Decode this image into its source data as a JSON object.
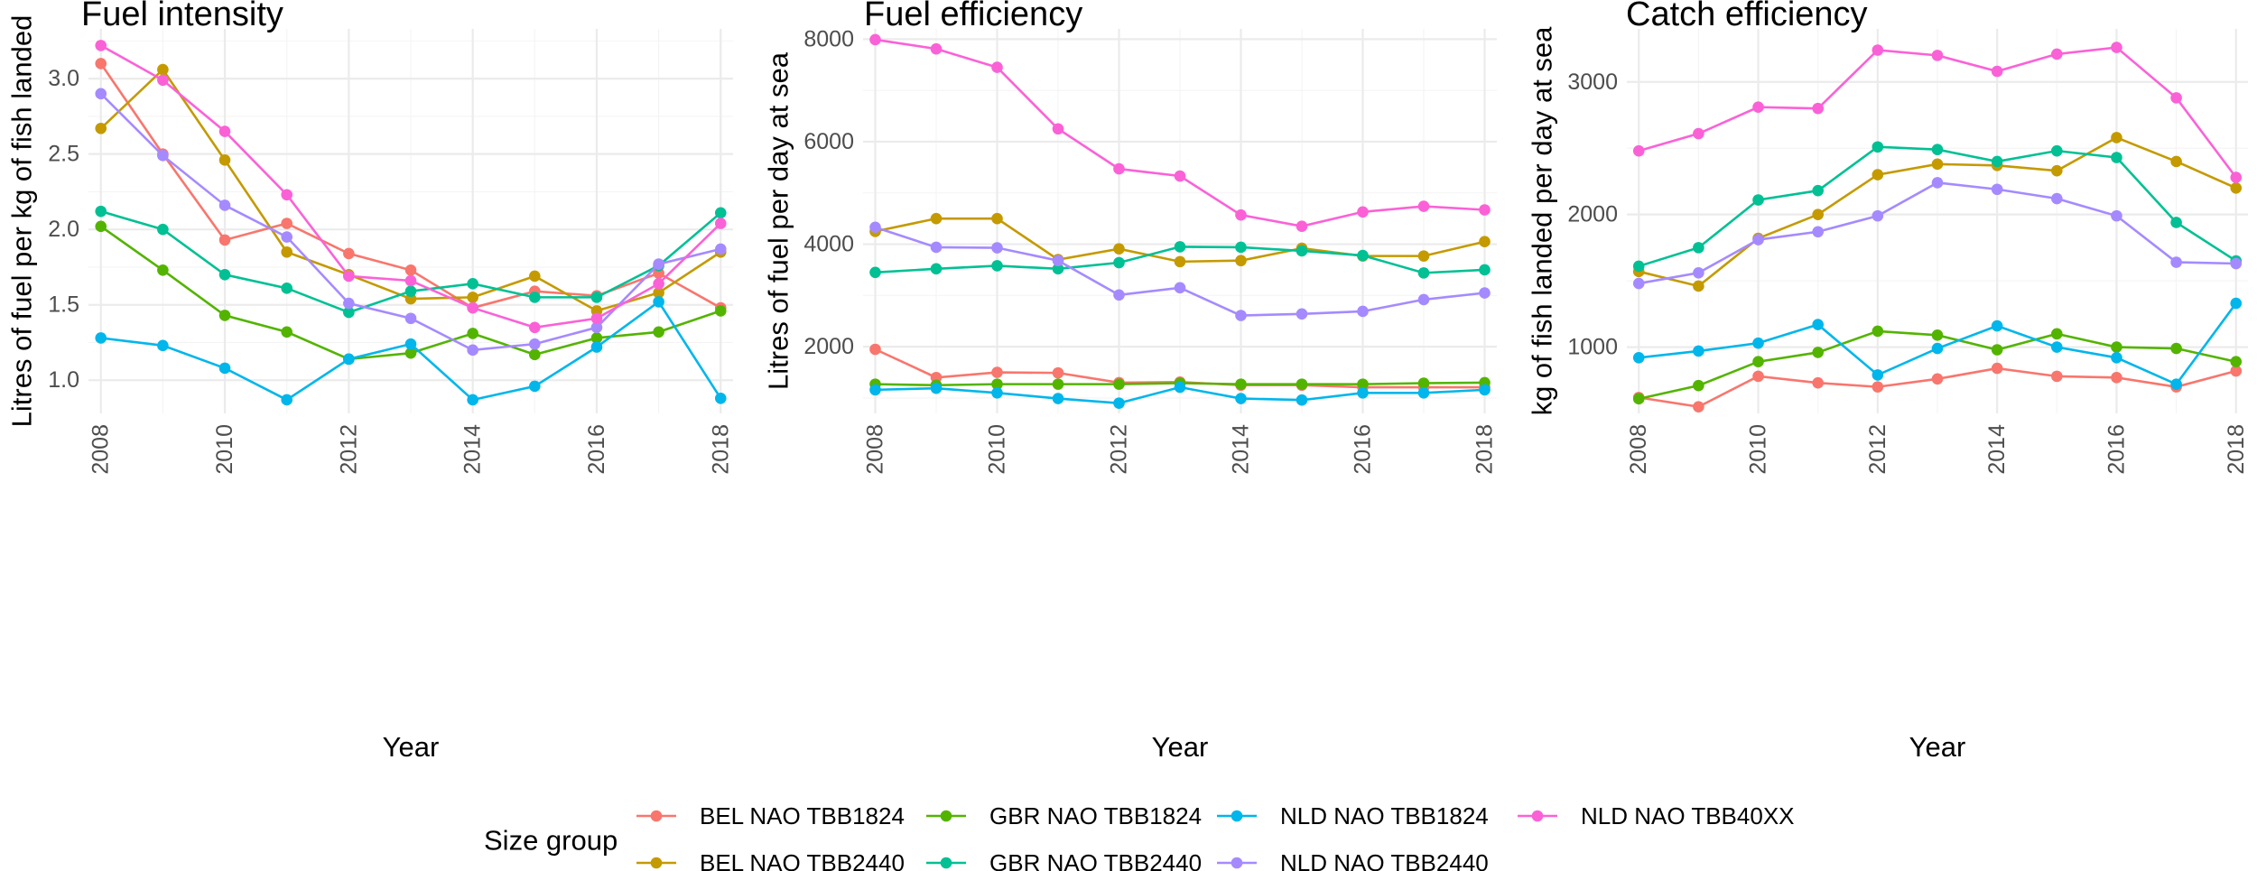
{
  "legend": {
    "title": "Size group",
    "order": [
      "BEL NAO TBB1824",
      "GBR NAO TBB1824",
      "NLD NAO TBB1824",
      "NLD NAO TBB40XX",
      "BEL NAO TBB2440",
      "GBR NAO TBB2440",
      "NLD NAO TBB2440"
    ]
  },
  "colors": {
    "BEL NAO TBB1824": "#F8766D",
    "BEL NAO TBB2440": "#C49A00",
    "GBR NAO TBB1824": "#53B400",
    "GBR NAO TBB2440": "#00C094",
    "NLD NAO TBB1824": "#00B6EB",
    "NLD NAO TBB2440": "#A58AFF",
    "NLD NAO TBB40XX": "#FB61D7"
  },
  "chart_data": [
    {
      "type": "line",
      "title": "Fuel intensity",
      "xlabel": "Year",
      "ylabel": "Litres of fuel per kg of fish landed",
      "xlim": [
        2007.8,
        2018.2
      ],
      "ylim": [
        0.78,
        3.33
      ],
      "xticks": [
        2008,
        2010,
        2012,
        2014,
        2016,
        2018
      ],
      "yticks": [
        1.0,
        1.5,
        2.0,
        2.5,
        3.0
      ],
      "ytick_labels": [
        "1.0",
        "1.5",
        "2.0",
        "2.5",
        "3.0"
      ],
      "x": [
        2008,
        2009,
        2010,
        2011,
        2012,
        2013,
        2014,
        2015,
        2016,
        2017,
        2018
      ],
      "series": [
        {
          "name": "BEL NAO TBB1824",
          "values": [
            3.1,
            2.5,
            1.93,
            2.04,
            1.84,
            1.73,
            1.48,
            1.59,
            1.56,
            1.71,
            1.48
          ]
        },
        {
          "name": "BEL NAO TBB2440",
          "values": [
            2.67,
            3.06,
            2.46,
            1.85,
            1.7,
            1.54,
            1.55,
            1.69,
            1.46,
            1.58,
            1.85
          ]
        },
        {
          "name": "GBR NAO TBB1824",
          "values": [
            2.02,
            1.73,
            1.43,
            1.32,
            1.14,
            1.18,
            1.31,
            1.17,
            1.28,
            1.32,
            1.46
          ]
        },
        {
          "name": "GBR NAO TBB2440",
          "values": [
            2.12,
            2.0,
            1.7,
            1.61,
            1.45,
            1.59,
            1.64,
            1.55,
            1.55,
            1.76,
            2.11
          ]
        },
        {
          "name": "NLD NAO TBB1824",
          "values": [
            1.28,
            1.23,
            1.08,
            0.87,
            1.14,
            1.24,
            0.87,
            0.96,
            1.22,
            1.52,
            0.88
          ]
        },
        {
          "name": "NLD NAO TBB2440",
          "values": [
            2.9,
            2.49,
            2.16,
            1.95,
            1.51,
            1.41,
            1.2,
            1.24,
            1.35,
            1.77,
            1.87
          ]
        },
        {
          "name": "NLD NAO TBB40XX",
          "values": [
            3.22,
            2.99,
            2.65,
            2.23,
            1.69,
            1.66,
            1.48,
            1.35,
            1.41,
            1.64,
            2.04
          ]
        }
      ]
    },
    {
      "type": "line",
      "title": "Fuel efficiency",
      "xlabel": "Year",
      "ylabel": "Litres of fuel per day at sea",
      "xlim": [
        2007.8,
        2018.2
      ],
      "ylim": [
        700,
        8200
      ],
      "xticks": [
        2008,
        2010,
        2012,
        2014,
        2016,
        2018
      ],
      "yticks": [
        2000,
        4000,
        6000,
        8000
      ],
      "ytick_labels": [
        "2000",
        "4000",
        "6000",
        "8000"
      ],
      "x": [
        2008,
        2009,
        2010,
        2011,
        2012,
        2013,
        2014,
        2015,
        2016,
        2017,
        2018
      ],
      "series": [
        {
          "name": "BEL NAO TBB1824",
          "values": [
            1950,
            1400,
            1500,
            1490,
            1300,
            1310,
            1250,
            1250,
            1210,
            1210,
            1210
          ]
        },
        {
          "name": "BEL NAO TBB2440",
          "values": [
            4250,
            4500,
            4500,
            3700,
            3910,
            3660,
            3680,
            3920,
            3770,
            3770,
            4050
          ]
        },
        {
          "name": "GBR NAO TBB1824",
          "values": [
            1270,
            1250,
            1270,
            1270,
            1270,
            1290,
            1270,
            1270,
            1270,
            1290,
            1300
          ]
        },
        {
          "name": "GBR NAO TBB2440",
          "values": [
            3450,
            3520,
            3580,
            3520,
            3640,
            3950,
            3940,
            3870,
            3780,
            3440,
            3500
          ]
        },
        {
          "name": "NLD NAO TBB1824",
          "values": [
            1160,
            1190,
            1100,
            990,
            900,
            1210,
            990,
            960,
            1100,
            1100,
            1160
          ]
        },
        {
          "name": "NLD NAO TBB2440",
          "values": [
            4330,
            3940,
            3930,
            3680,
            3010,
            3150,
            2610,
            2640,
            2690,
            2920,
            3050
          ]
        },
        {
          "name": "NLD NAO TBB40XX",
          "values": [
            7990,
            7810,
            7450,
            6250,
            5470,
            5330,
            4570,
            4350,
            4630,
            4740,
            4670
          ]
        }
      ]
    },
    {
      "type": "line",
      "title": "Catch efficiency",
      "xlabel": "Year",
      "ylabel": "kg of fish landed per day at sea",
      "xlim": [
        2007.8,
        2018.2
      ],
      "ylim": [
        500,
        3400
      ],
      "xticks": [
        2008,
        2010,
        2012,
        2014,
        2016,
        2018
      ],
      "yticks": [
        1000,
        2000,
        3000
      ],
      "ytick_labels": [
        "1000",
        "2000",
        "3000"
      ],
      "x": [
        2008,
        2009,
        2010,
        2011,
        2012,
        2013,
        2014,
        2015,
        2016,
        2017,
        2018
      ],
      "series": [
        {
          "name": "BEL NAO TBB1824",
          "values": [
            620,
            550,
            780,
            730,
            700,
            760,
            840,
            780,
            770,
            700,
            820
          ]
        },
        {
          "name": "BEL NAO TBB2440",
          "values": [
            1570,
            1460,
            1820,
            2000,
            2300,
            2380,
            2370,
            2330,
            2580,
            2400,
            2200
          ]
        },
        {
          "name": "GBR NAO TBB1824",
          "values": [
            610,
            710,
            890,
            960,
            1120,
            1090,
            980,
            1100,
            1000,
            990,
            890
          ]
        },
        {
          "name": "GBR NAO TBB2440",
          "values": [
            1610,
            1750,
            2110,
            2180,
            2510,
            2490,
            2400,
            2480,
            2430,
            1940,
            1650
          ]
        },
        {
          "name": "NLD NAO TBB1824",
          "values": [
            920,
            970,
            1030,
            1170,
            790,
            990,
            1160,
            1000,
            920,
            720,
            1330
          ]
        },
        {
          "name": "NLD NAO TBB2440",
          "values": [
            1480,
            1560,
            1810,
            1870,
            1990,
            2240,
            2190,
            2120,
            1990,
            1640,
            1630
          ]
        },
        {
          "name": "NLD NAO TBB40XX",
          "values": [
            2480,
            2610,
            2810,
            2800,
            3240,
            3200,
            3080,
            3210,
            3260,
            2880,
            2280
          ]
        }
      ]
    }
  ]
}
